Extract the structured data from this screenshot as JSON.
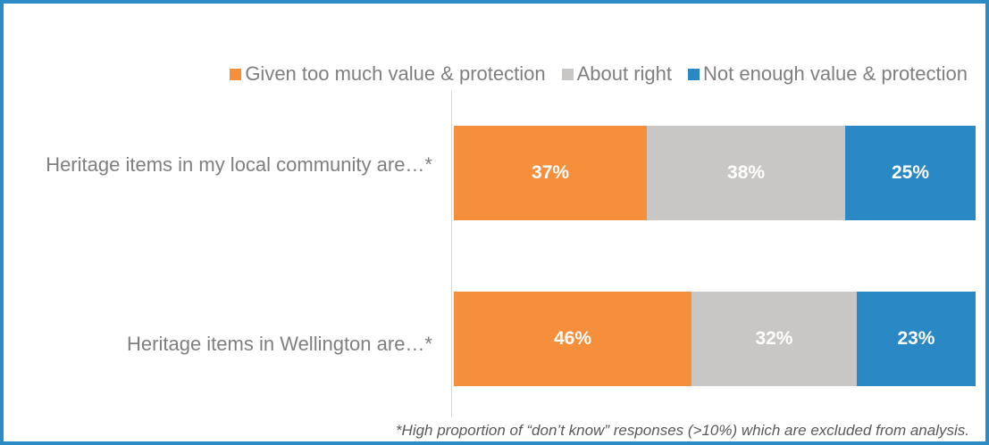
{
  "chart_data": {
    "type": "bar",
    "orientation": "horizontal",
    "stacked": true,
    "categories": [
      "Heritage items in my local community are…*",
      "Heritage items in Wellington are…*"
    ],
    "series": [
      {
        "name": "Given too much value & protection",
        "color": "#f58f3b",
        "values": [
          37,
          46
        ],
        "labels": [
          "37%",
          "46%"
        ]
      },
      {
        "name": "About right",
        "color": "#c8c7c5",
        "values": [
          38,
          32
        ],
        "labels": [
          "38%",
          "32%"
        ]
      },
      {
        "name": "Not enough value & protection",
        "color": "#2a88c4",
        "values": [
          25,
          23
        ],
        "labels": [
          "25%",
          "23%"
        ]
      }
    ],
    "legend_position": "top",
    "footnote": "*High proportion of “don’t know” responses (>10%) which are excluded from analysis."
  }
}
